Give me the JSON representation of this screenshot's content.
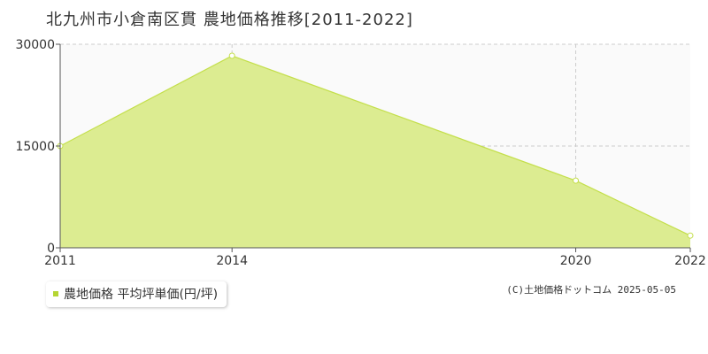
{
  "title": "北九州市小倉南区貫 農地価格推移[2011-2022]",
  "chart_data": {
    "type": "area",
    "x": [
      2011,
      2014,
      2020,
      2022
    ],
    "x_ticks": [
      "2011",
      "2014",
      "2020",
      "2022"
    ],
    "xlim": [
      2011,
      2022
    ],
    "y_ticks": [
      "0",
      "15000",
      "30000"
    ],
    "ylim": [
      0,
      30000
    ],
    "series": [
      {
        "name": "農地価格 平均坪単価(円/坪)",
        "values": [
          15000,
          28300,
          9900,
          1800
        ],
        "color": "#dcec91",
        "line_color": "#c4df4c"
      }
    ],
    "grid": true,
    "legend_position": "bottom-left"
  },
  "legend": {
    "label": "農地価格 平均坪単価(円/坪)",
    "color": "#b5d534"
  },
  "credit": "(C)土地価格ドットコム 2025-05-05"
}
